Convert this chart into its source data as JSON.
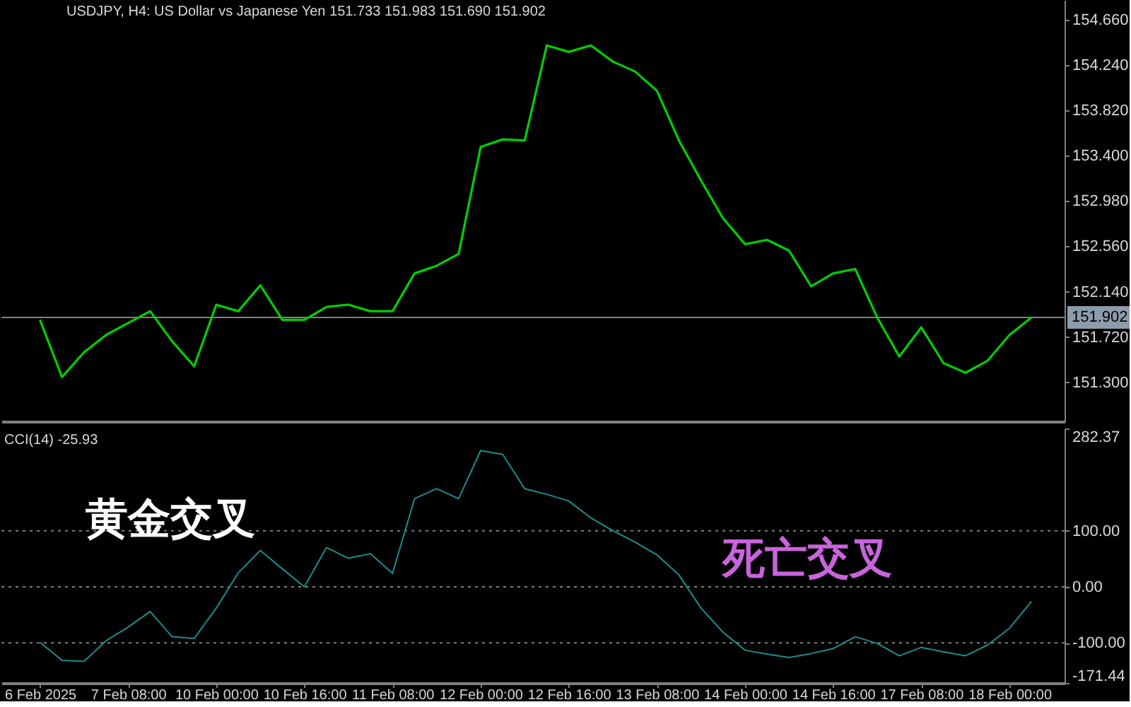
{
  "chart_data": [
    {
      "type": "line",
      "title": "USDJPY, H4:  US Dollar vs Japanese Yen  151.733 151.983 151.690 151.902",
      "series": [
        {
          "color": "#00d000",
          "values": [
            151.88,
            151.35,
            151.58,
            151.74,
            151.85,
            151.96,
            151.68,
            151.45,
            152.02,
            151.96,
            152.2,
            151.88,
            151.88,
            152.0,
            152.02,
            151.96,
            151.96,
            152.31,
            152.38,
            152.49,
            153.48,
            153.55,
            153.54,
            154.42,
            154.36,
            154.42,
            154.27,
            154.18,
            154.0,
            153.54,
            153.17,
            152.82,
            152.58,
            152.62,
            152.52,
            152.19,
            152.31,
            152.35,
            151.9,
            151.54,
            151.81,
            151.48,
            151.39,
            151.5,
            151.74,
            151.902
          ]
        }
      ],
      "ylim": [
        150.94,
        154.84
      ],
      "yticks": [
        {
          "value": 151.3,
          "label": "151.300"
        },
        {
          "value": 151.72,
          "label": "151.720"
        },
        {
          "value": 152.14,
          "label": "152.140"
        },
        {
          "value": 152.56,
          "label": "152.560"
        },
        {
          "value": 152.98,
          "label": "152.980"
        },
        {
          "value": 153.4,
          "label": "153.400"
        },
        {
          "value": 153.82,
          "label": "153.820"
        },
        {
          "value": 154.24,
          "label": "154.240"
        },
        {
          "value": 154.66,
          "label": "154.660"
        }
      ],
      "ref_lines": [
        {
          "axis": "y",
          "value": 151.902,
          "label": "151.902",
          "color": "#808080",
          "line_style": "solid"
        }
      ],
      "grid": false
    },
    {
      "type": "line",
      "title": "CCI(14) -25.93",
      "categories": [
        "6 Feb 2025",
        null,
        null,
        null,
        "7 Feb 08:00",
        null,
        null,
        null,
        "10 Feb 00:00",
        null,
        null,
        null,
        "10 Feb 16:00",
        null,
        null,
        null,
        "11 Feb 08:00",
        null,
        null,
        null,
        "12 Feb 00:00",
        null,
        null,
        null,
        "12 Feb 16:00",
        null,
        null,
        null,
        "13 Feb 08:00",
        null,
        null,
        null,
        "14 Feb 00:00",
        null,
        null,
        null,
        "14 Feb 16:00",
        null,
        null,
        null,
        "17 Feb 08:00",
        null,
        null,
        null,
        "18 Feb 00:00",
        null
      ],
      "series": [
        {
          "color": "#1e8c8c",
          "values": [
            -99,
            -131,
            -133,
            -96,
            -72,
            -44,
            -89,
            -92,
            -38,
            25,
            65,
            32,
            0,
            70,
            51,
            59,
            24,
            157,
            175,
            157,
            243,
            236,
            175,
            165,
            153,
            123,
            100,
            80,
            57,
            21,
            -38,
            -81,
            -113,
            -120,
            -126,
            -119,
            -110,
            -89,
            -101,
            -123,
            -108,
            -116,
            -123,
            -104,
            -74,
            -25.93
          ]
        }
      ],
      "ylim": [
        -171.44,
        282.37
      ],
      "yticks": [
        {
          "value": -171.44,
          "label": "-171.44"
        },
        {
          "value": -100,
          "label": "-100.00"
        },
        {
          "value": 0,
          "label": "0.00"
        },
        {
          "value": 100,
          "label": "100.00"
        },
        {
          "value": 282.37,
          "label": "282.37"
        }
      ],
      "ref_lines": [
        {
          "axis": "y",
          "value": 100,
          "color": "#808080",
          "line_style": "dotted"
        },
        {
          "axis": "y",
          "value": 0,
          "color": "#808080",
          "line_style": "dotted"
        },
        {
          "axis": "y",
          "value": -100,
          "color": "#808080",
          "line_style": "dotted"
        }
      ],
      "annotations": [
        "黄金交叉",
        "死亡交叉"
      ],
      "grid": false
    }
  ]
}
